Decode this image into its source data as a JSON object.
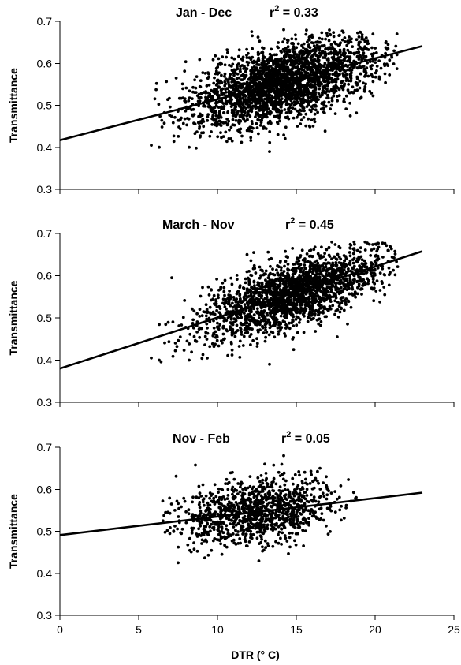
{
  "chart_data": [
    {
      "type": "scatter",
      "title": "Jan - Dec",
      "r2_label": "r",
      "r2_sup": "2",
      "r2_value": " = 0.33",
      "ylabel": "Transmittance",
      "xlabel": "",
      "xlim": [
        0,
        25
      ],
      "ylim": [
        0.3,
        0.7
      ],
      "xticks": [
        "0",
        "5",
        "10",
        "15",
        "20",
        "25"
      ],
      "yticks": [
        "0.3",
        "0.4",
        "0.5",
        "0.6",
        "0.7"
      ],
      "show_xtick_labels": false,
      "trendline": {
        "x": [
          0,
          23
        ],
        "y": [
          0.417,
          0.641
        ]
      },
      "cloud": {
        "n": 2600,
        "x_center": 14.2,
        "x_sd": 3.0,
        "x_min": 5.6,
        "x_max": 21.6,
        "slope": 0.0097,
        "intercept": 0.417,
        "resid_sd": 0.045,
        "y_min": 0.395,
        "y_max": 0.68
      },
      "outliers": [
        [
          5.8,
          0.405
        ],
        [
          6.3,
          0.4
        ],
        [
          13.3,
          0.39
        ],
        [
          14.2,
          0.68
        ],
        [
          8.2,
          0.4
        ]
      ]
    },
    {
      "type": "scatter",
      "title": "March - Nov",
      "r2_label": "r",
      "r2_sup": "2",
      "r2_value": " = 0.45",
      "ylabel": "Transmittance",
      "xlabel": "",
      "xlim": [
        0,
        25
      ],
      "ylim": [
        0.3,
        0.7
      ],
      "xticks": [
        "0",
        "5",
        "10",
        "15",
        "20",
        "25"
      ],
      "yticks": [
        "0.3",
        "0.4",
        "0.5",
        "0.6",
        "0.7"
      ],
      "show_xtick_labels": false,
      "trendline": {
        "x": [
          0,
          23
        ],
        "y": [
          0.38,
          0.658
        ]
      },
      "cloud": {
        "n": 2100,
        "x_center": 14.8,
        "x_sd": 2.8,
        "x_min": 5.6,
        "x_max": 21.6,
        "slope": 0.0121,
        "intercept": 0.38,
        "resid_sd": 0.04,
        "y_min": 0.39,
        "y_max": 0.68
      },
      "outliers": [
        [
          5.8,
          0.405
        ],
        [
          6.3,
          0.4
        ],
        [
          7.1,
          0.595
        ],
        [
          8.2,
          0.4
        ],
        [
          12.3,
          0.655
        ],
        [
          13.3,
          0.39
        ]
      ]
    },
    {
      "type": "scatter",
      "title": "Nov - Feb",
      "r2_label": "r",
      "r2_sup": "2",
      "r2_value": " = 0.05",
      "ylabel": "Transmittance",
      "xlabel": "DTR (° C)",
      "xlim": [
        0,
        25
      ],
      "ylim": [
        0.3,
        0.7
      ],
      "xticks": [
        "0",
        "5",
        "10",
        "15",
        "20",
        "25"
      ],
      "yticks": [
        "0.3",
        "0.4",
        "0.5",
        "0.6",
        "0.7"
      ],
      "show_xtick_labels": true,
      "trendline": {
        "x": [
          0,
          23
        ],
        "y": [
          0.491,
          0.592
        ]
      },
      "cloud": {
        "n": 1100,
        "x_center": 12.5,
        "x_sd": 2.6,
        "x_min": 6.5,
        "x_max": 19.2,
        "slope": 0.0044,
        "intercept": 0.491,
        "resid_sd": 0.04,
        "y_min": 0.415,
        "y_max": 0.66
      },
      "outliers": [
        [
          14.2,
          0.68
        ],
        [
          16.5,
          0.65
        ],
        [
          13.0,
          0.66
        ],
        [
          7.5,
          0.425
        ],
        [
          16.9,
          0.63
        ]
      ]
    }
  ]
}
